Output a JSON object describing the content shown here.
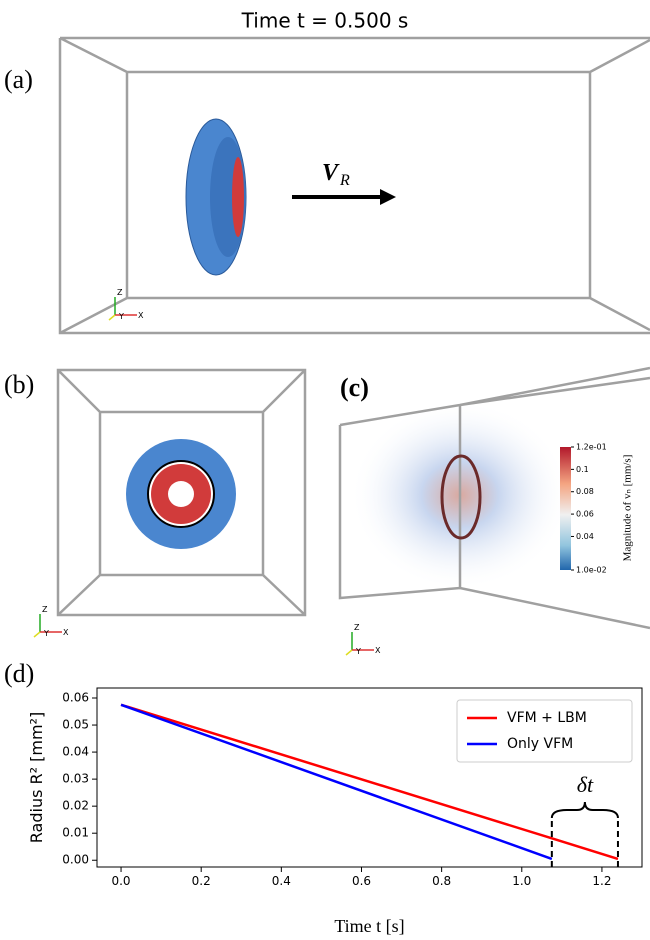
{
  "panel_a": {
    "tag": "(a)",
    "title": "Time t = 0.500 s",
    "arrow_label": {
      "label": "V",
      "subscript": "R"
    }
  },
  "panel_b": {
    "tag": "(b)"
  },
  "panel_c": {
    "tag": "(c)",
    "colorbar": {
      "title": "Magnitude of vₙ [mm/s]",
      "lim": [
        0.01,
        0.12
      ],
      "ticks": [
        {
          "value": 0.12,
          "label": "1.2e-01"
        },
        0.1,
        0.08,
        0.06,
        0.04,
        {
          "value": 0.01,
          "label": "1.0e-02"
        }
      ]
    }
  },
  "triad": [
    "Z",
    "X",
    "Y"
  ],
  "chart_data": {
    "type": "line",
    "tag": "(d)",
    "xlabel": "Time t [s]",
    "ylabel": "Radius R² [mm²]",
    "x": [
      0,
      1.075,
      1.24
    ],
    "series": [
      {
        "name": "VFM + LBM",
        "color": "#ff0000",
        "values": [
          0.0575,
          0.0081,
          0.0005
        ]
      },
      {
        "name": "Only VFM",
        "color": "#0000ff",
        "values": [
          0.0575,
          0.0005,
          null
        ]
      }
    ],
    "annotation": "δt",
    "xlim": [
      -0.06,
      1.3
    ],
    "ylim": [
      -0.0025,
      0.0637
    ],
    "xticks": [
      {
        "value": 0,
        "label": "0.0"
      },
      0.2,
      0.4,
      0.6,
      0.8,
      {
        "value": 1,
        "label": "1.0"
      },
      1.2
    ],
    "yticks": [
      {
        "value": 0,
        "label": "0.00"
      },
      0.01,
      0.02,
      0.03,
      0.04,
      0.05,
      0.06
    ],
    "legend": "upper right"
  }
}
